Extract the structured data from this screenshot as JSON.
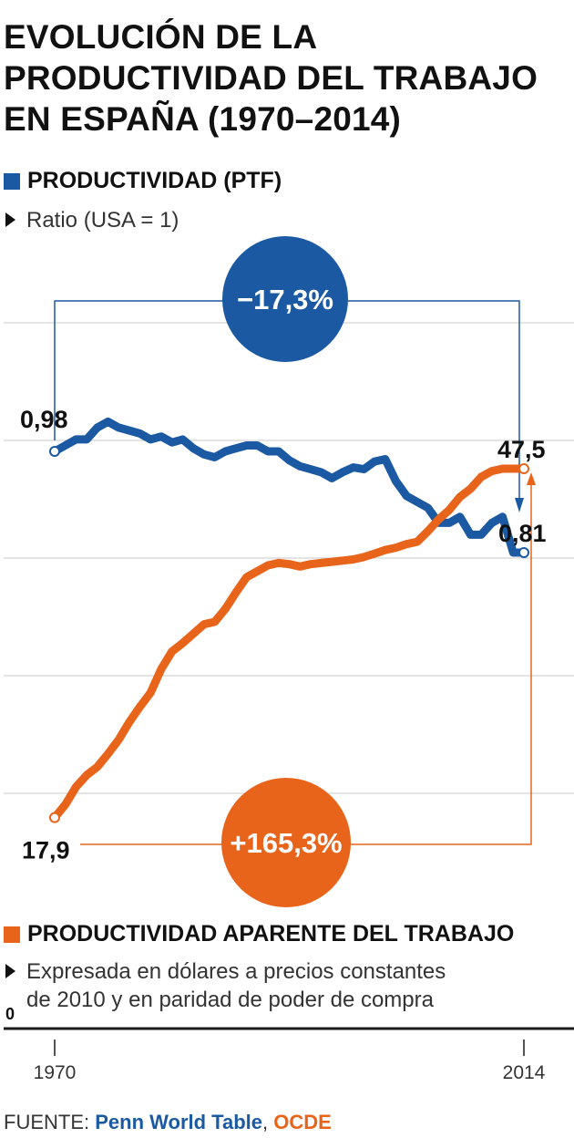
{
  "title_lines": [
    "EVOLUCIÓN DE LA",
    "PRODUCTIVIDAD DEL TRABAJO",
    "EN ESPAÑA (1970–2014)"
  ],
  "legend_top": {
    "label": "PRODUCTIVIDAD (PTF)",
    "note": "Ratio (USA = 1)",
    "color": "#1b5aa3"
  },
  "legend_bottom": {
    "label": "PRODUCTIVIDAD APARENTE DEL TRABAJO",
    "note_lines": [
      "Expresada en dólares a precios constantes",
      "de 2010 y en paridad de poder de compra"
    ],
    "color": "#e8641a"
  },
  "source": {
    "prefix": "FUENTE: ",
    "src1": "Penn World Table",
    "sep": ", ",
    "src2": "OCDE"
  },
  "chart_data": {
    "type": "line",
    "x_ticks": [
      "1970",
      "2014"
    ],
    "y_tick_labels": [
      "0"
    ],
    "grid": true,
    "series": [
      {
        "name": "PRODUCTIVIDAD (PTF)",
        "color": "#1b5aa3",
        "x": [
          1970,
          1971,
          1972,
          1973,
          1974,
          1975,
          1976,
          1977,
          1978,
          1979,
          1980,
          1981,
          1982,
          1983,
          1984,
          1985,
          1986,
          1987,
          1988,
          1989,
          1990,
          1991,
          1992,
          1993,
          1994,
          1995,
          1996,
          1997,
          1998,
          1999,
          2000,
          2001,
          2002,
          2003,
          2004,
          2005,
          2006,
          2007,
          2008,
          2009,
          2010,
          2011,
          2012,
          2013,
          2014
        ],
        "values": [
          0.98,
          0.99,
          1.0,
          1.0,
          1.02,
          1.03,
          1.02,
          1.015,
          1.01,
          1.0,
          1.005,
          0.995,
          1.0,
          0.985,
          0.975,
          0.97,
          0.98,
          0.985,
          0.99,
          0.99,
          0.98,
          0.98,
          0.965,
          0.955,
          0.95,
          0.945,
          0.935,
          0.945,
          0.953,
          0.95,
          0.963,
          0.967,
          0.93,
          0.905,
          0.895,
          0.885,
          0.86,
          0.86,
          0.87,
          0.84,
          0.84,
          0.86,
          0.87,
          0.81,
          0.81
        ],
        "start_label": "0,98",
        "end_label": "0,81",
        "change_label": "−17,3%"
      },
      {
        "name": "PRODUCTIVIDAD APARENTE DEL TRABAJO",
        "color": "#e8641a",
        "x": [
          1970,
          1971,
          1972,
          1973,
          1974,
          1975,
          1976,
          1977,
          1978,
          1979,
          1980,
          1981,
          1982,
          1983,
          1984,
          1985,
          1986,
          1987,
          1988,
          1989,
          1990,
          1991,
          1992,
          1993,
          1994,
          1995,
          1996,
          1997,
          1998,
          1999,
          2000,
          2001,
          2002,
          2003,
          2004,
          2005,
          2006,
          2007,
          2008,
          2009,
          2010,
          2011,
          2012,
          2013,
          2014
        ],
        "values": [
          17.9,
          19.0,
          20.5,
          21.5,
          22.2,
          23.3,
          24.5,
          26.0,
          27.3,
          28.5,
          30.5,
          32.0,
          32.7,
          33.5,
          34.3,
          34.5,
          35.6,
          37.0,
          38.3,
          38.8,
          39.3,
          39.5,
          39.4,
          39.2,
          39.4,
          39.5,
          39.6,
          39.7,
          39.8,
          40.0,
          40.3,
          40.6,
          40.8,
          41.1,
          41.3,
          42.2,
          43.2,
          44.0,
          45.1,
          45.8,
          46.8,
          47.3,
          47.5,
          47.5,
          47.5
        ],
        "start_label": "17,9",
        "end_label": "47,5",
        "change_label": "+165,3%"
      }
    ]
  }
}
